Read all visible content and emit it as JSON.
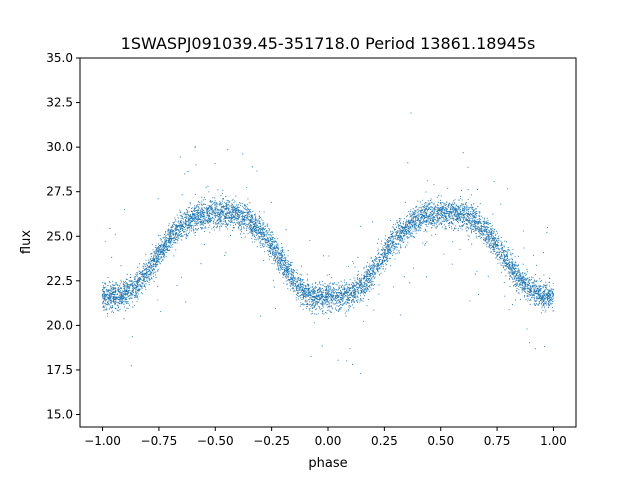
{
  "chart_data": {
    "type": "scatter",
    "title": "1SWASPJ091039.45-351718.0 Period 13861.18945s",
    "xlabel": "phase",
    "ylabel": "flux",
    "xlim": [
      -1.1,
      1.1
    ],
    "ylim": [
      14.3,
      35.0
    ],
    "xticks": [
      -1.0,
      -0.75,
      -0.5,
      -0.25,
      0.0,
      0.25,
      0.5,
      0.75,
      1.0
    ],
    "xtick_labels": [
      "−1.00",
      "−0.75",
      "−0.50",
      "−0.25",
      "0.00",
      "0.25",
      "0.50",
      "0.75",
      "1.00"
    ],
    "yticks": [
      15.0,
      17.5,
      20.0,
      22.5,
      25.0,
      27.5,
      30.0,
      32.5,
      35.0
    ],
    "ytick_labels": [
      "15.0",
      "17.5",
      "20.0",
      "22.5",
      "25.0",
      "27.5",
      "30.0",
      "32.5",
      "35.0"
    ],
    "grid": false,
    "marker_color": "#1f77b4",
    "series": [
      {
        "x": [
          -1.0,
          -0.95,
          -0.9,
          -0.85,
          -0.8,
          -0.75,
          -0.7,
          -0.65,
          -0.6,
          -0.55,
          -0.5,
          -0.45,
          -0.4,
          -0.35,
          -0.3,
          -0.25,
          -0.2,
          -0.15,
          -0.1,
          -0.05,
          0.0,
          0.05,
          0.1,
          0.15,
          0.2,
          0.25,
          0.3,
          0.35,
          0.4,
          0.45,
          0.5,
          0.55,
          0.6,
          0.65,
          0.7,
          0.75,
          0.8,
          0.85,
          0.9,
          0.95,
          1.0
        ],
        "y": [
          21.7,
          21.6,
          21.8,
          22.2,
          23.0,
          24.0,
          24.9,
          25.6,
          26.0,
          26.2,
          26.3,
          26.3,
          26.2,
          25.9,
          25.3,
          24.5,
          23.5,
          22.5,
          21.8,
          21.5,
          21.6,
          21.6,
          21.8,
          22.2,
          23.0,
          24.0,
          24.9,
          25.5,
          26.0,
          26.2,
          26.3,
          26.3,
          26.2,
          25.9,
          25.3,
          24.5,
          23.5,
          22.6,
          22.0,
          21.7,
          21.7
        ]
      }
    ]
  }
}
